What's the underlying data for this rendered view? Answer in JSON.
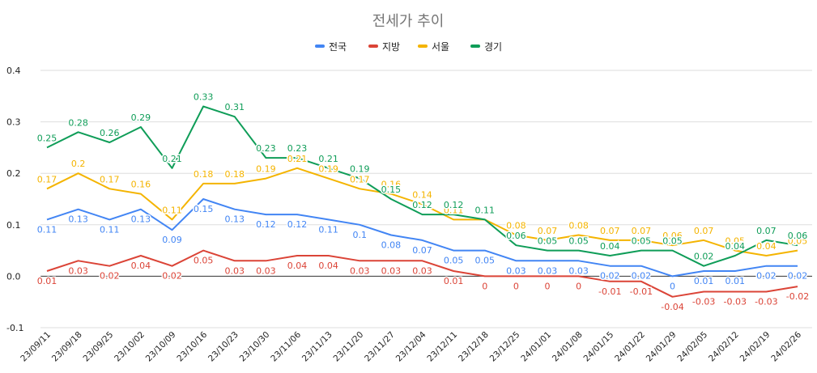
{
  "chart_data": {
    "type": "line",
    "title": "전세가 추이",
    "legend_position": "top",
    "grid": true,
    "ylim": [
      -0.1,
      0.4
    ],
    "yticks": [
      -0.1,
      0.0,
      0.1,
      0.2,
      0.3,
      0.4
    ],
    "ytick_labels": [
      "-0.1",
      "0.0",
      "0.1",
      "0.2",
      "0.3",
      "0.4"
    ],
    "categories": [
      "23/09/11",
      "23/09/18",
      "23/09/25",
      "23/10/02",
      "23/10/09",
      "23/10/16",
      "23/10/23",
      "23/10/30",
      "23/11/06",
      "23/11/13",
      "23/11/20",
      "23/11/27",
      "23/12/04",
      "23/12/11",
      "23/12/18",
      "23/12/25",
      "24/01/01",
      "24/01/08",
      "24/01/15",
      "24/01/22",
      "24/01/29",
      "24/02/05",
      "24/02/12",
      "24/02/19",
      "24/02/26"
    ],
    "series": [
      {
        "name": "전국",
        "color": "#4285F4",
        "label_position": "below",
        "values": [
          0.11,
          0.13,
          0.11,
          0.13,
          0.09,
          0.15,
          0.13,
          0.12,
          0.12,
          0.11,
          0.1,
          0.08,
          0.07,
          0.05,
          0.05,
          0.03,
          0.03,
          0.03,
          0.02,
          0.02,
          0,
          0.01,
          0.01,
          0.02,
          0.02
        ]
      },
      {
        "name": "지방",
        "color": "#DB4437",
        "label_position": "below",
        "values": [
          0.01,
          0.03,
          0.02,
          0.04,
          0.02,
          0.05,
          0.03,
          0.03,
          0.04,
          0.04,
          0.03,
          0.03,
          0.03,
          0.01,
          0,
          0,
          0,
          0,
          -0.01,
          -0.01,
          -0.04,
          -0.03,
          -0.03,
          -0.03,
          -0.02
        ]
      },
      {
        "name": "서울",
        "color": "#F4B400",
        "label_position": "above",
        "values": [
          0.17,
          0.2,
          0.17,
          0.16,
          0.11,
          0.18,
          0.18,
          0.19,
          0.21,
          0.19,
          0.17,
          0.16,
          0.14,
          0.11,
          0.11,
          0.08,
          0.07,
          0.08,
          0.07,
          0.07,
          0.06,
          0.07,
          0.05,
          0.04,
          0.05
        ]
      },
      {
        "name": "경기",
        "color": "#0F9D58",
        "label_position": "above",
        "values": [
          0.25,
          0.28,
          0.26,
          0.29,
          0.21,
          0.33,
          0.31,
          0.23,
          0.23,
          0.21,
          0.19,
          0.15,
          0.12,
          0.12,
          0.11,
          0.06,
          0.05,
          0.05,
          0.04,
          0.05,
          0.05,
          0.02,
          0.04,
          0.07,
          0.06
        ]
      }
    ]
  }
}
